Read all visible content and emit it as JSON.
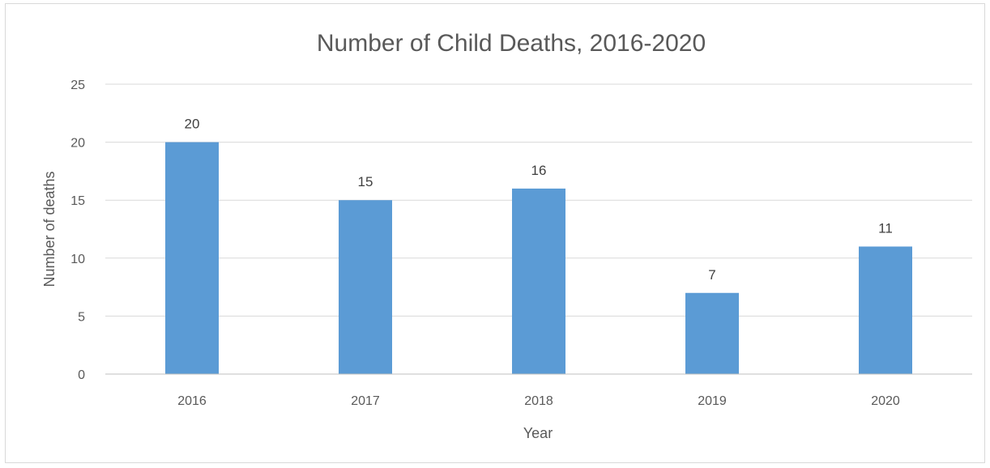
{
  "chart_data": {
    "type": "bar",
    "title": "Number of Child Deaths, 2016-2020",
    "xlabel": "Year",
    "ylabel": "Number of deaths",
    "categories": [
      "2016",
      "2017",
      "2018",
      "2019",
      "2020"
    ],
    "values": [
      20,
      15,
      16,
      7,
      11
    ],
    "data_labels": [
      "20",
      "15",
      "16",
      "7",
      "11"
    ],
    "ylim": [
      0,
      25
    ],
    "yticks": [
      0,
      5,
      10,
      15,
      20,
      25
    ],
    "ytick_labels": [
      "0",
      "5",
      "10",
      "15",
      "20",
      "25"
    ],
    "grid": true,
    "legend": "none",
    "bar_color": "#5B9BD5"
  }
}
